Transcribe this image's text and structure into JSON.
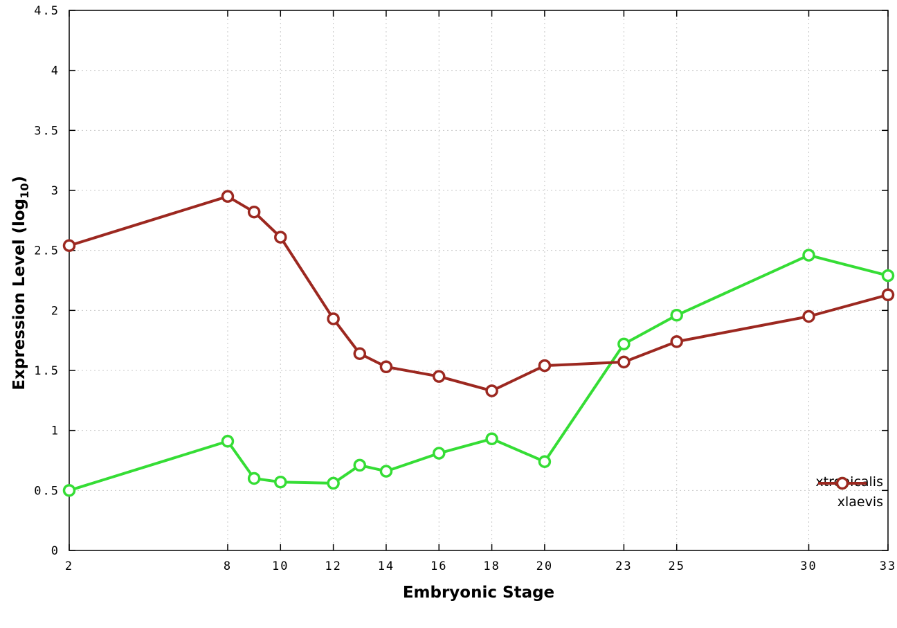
{
  "chart_data": {
    "type": "line",
    "title": "",
    "xlabel": "Embryonic Stage",
    "ylabel_pre": "Expression Level (log",
    "ylabel_sub": "10",
    "ylabel_post": ")",
    "xlim": [
      2,
      33
    ],
    "ylim": [
      0,
      4.5
    ],
    "xticks": [
      2,
      8,
      10,
      12,
      14,
      16,
      18,
      20,
      23,
      25,
      30,
      33
    ],
    "yticks": [
      0,
      0.5,
      1,
      1.5,
      2,
      2.5,
      3,
      3.5,
      4,
      4.5
    ],
    "grid": true,
    "grid_color": "#c8c8c8",
    "background": "#ffffff",
    "legend_position": "bottom-right",
    "series": [
      {
        "name": "xtropicalis",
        "color": "#35dd35",
        "x": [
          2,
          8,
          9,
          10,
          12,
          13,
          14,
          16,
          18,
          20,
          23,
          25,
          30,
          33
        ],
        "y": [
          0.5,
          0.91,
          0.6,
          0.57,
          0.56,
          0.71,
          0.66,
          0.81,
          0.93,
          0.74,
          1.72,
          1.96,
          2.46,
          2.29
        ]
      },
      {
        "name": "xlaevis",
        "color": "#9c2820",
        "x": [
          2,
          8,
          9,
          10,
          12,
          13,
          14,
          16,
          18,
          20,
          23,
          25,
          30,
          33
        ],
        "y": [
          2.54,
          2.95,
          2.82,
          2.61,
          1.93,
          1.64,
          1.53,
          1.45,
          1.33,
          1.54,
          1.57,
          1.74,
          1.95,
          2.13
        ]
      }
    ]
  }
}
